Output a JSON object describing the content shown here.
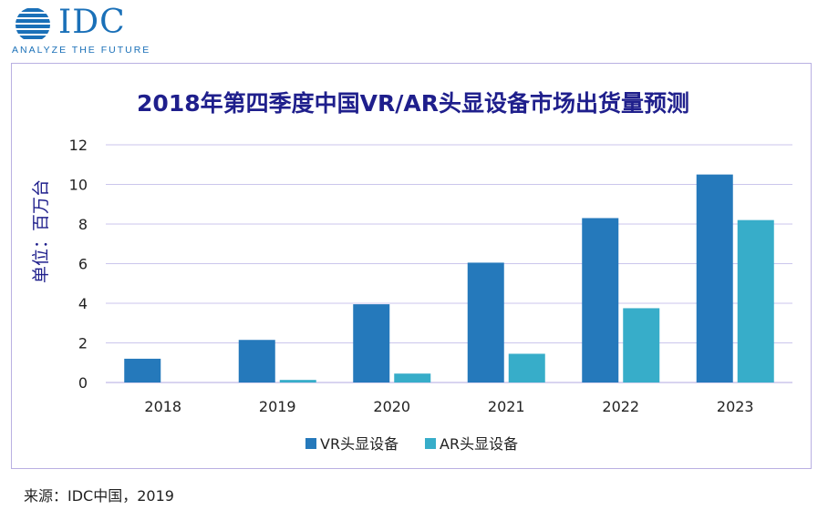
{
  "brand": {
    "logo_text": "IDC",
    "tagline": "ANALYZE THE FUTURE",
    "color": "#1a70b8"
  },
  "source_note": "来源：IDC中国，2019",
  "colors": {
    "vr": "#2579bb",
    "ar": "#37adc9",
    "title": "#1f1f8c",
    "grid": "#cbc6ec",
    "axis_text": "#222222"
  },
  "chart_data": {
    "type": "bar",
    "title": "2018年第四季度中国VR/AR头显设备市场出货量预测",
    "xlabel": "",
    "ylabel": "单位：百万台",
    "categories": [
      "2018",
      "2019",
      "2020",
      "2021",
      "2022",
      "2023"
    ],
    "series": [
      {
        "name": "VR头显设备",
        "values": [
          1.2,
          2.15,
          3.95,
          6.05,
          8.3,
          10.5
        ]
      },
      {
        "name": "AR头显设备",
        "values": [
          0,
          0.13,
          0.45,
          1.45,
          3.75,
          8.2
        ]
      }
    ],
    "ylim": [
      0,
      12
    ],
    "yticks": [
      0,
      2,
      4,
      6,
      8,
      10,
      12
    ],
    "grid": true,
    "legend": "bottom"
  }
}
